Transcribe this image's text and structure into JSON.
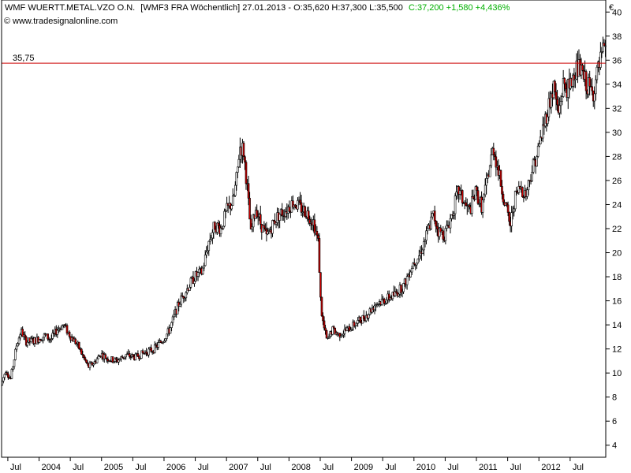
{
  "header": {
    "instrument": "WMF WUERTT.METAL.VZO O.N.",
    "details": "[WMF3 FRA  Wöchentlich] 27.01.2013 - O:35,620 H:37,300 L:35,500",
    "close_change": "C:37,200 +1,580 +4,436%",
    "source": "www.tradesignalonline.com",
    "currency": "€"
  },
  "colors": {
    "up": "#ffffff",
    "down": "#cc0000",
    "wick": "#000000",
    "close_positive": "#00b000",
    "level_line": "#cc0000"
  },
  "chart_data": {
    "type": "candlestick",
    "interval": "weekly",
    "ylim": [
      3,
      41
    ],
    "y_ticks": [
      4,
      6,
      8,
      10,
      12,
      14,
      16,
      18,
      20,
      22,
      24,
      26,
      28,
      30,
      32,
      34,
      36,
      38,
      40
    ],
    "x_range": [
      2003.4,
      2013.07
    ],
    "x_ticks": [
      {
        "label": "Jul",
        "x": 2003.5
      },
      {
        "label": "2004",
        "x": 2004.0
      },
      {
        "label": "Jul",
        "x": 2004.5
      },
      {
        "label": "2005",
        "x": 2005.0
      },
      {
        "label": "Jul",
        "x": 2005.5
      },
      {
        "label": "2006",
        "x": 2006.0
      },
      {
        "label": "Jul",
        "x": 2006.5
      },
      {
        "label": "2007",
        "x": 2007.0
      },
      {
        "label": "Jul",
        "x": 2007.5
      },
      {
        "label": "2008",
        "x": 2008.0
      },
      {
        "label": "Jul",
        "x": 2008.5
      },
      {
        "label": "2009",
        "x": 2009.0
      },
      {
        "label": "Jul",
        "x": 2009.5
      },
      {
        "label": "2010",
        "x": 2010.0
      },
      {
        "label": "Jul",
        "x": 2010.5
      },
      {
        "label": "2011",
        "x": 2011.0
      },
      {
        "label": "Jul",
        "x": 2011.5
      },
      {
        "label": "2012",
        "x": 2012.0
      },
      {
        "label": "Jul",
        "x": 2012.5
      }
    ],
    "horizontal_line": {
      "value": 35.75,
      "label": "35,75"
    },
    "price_path": [
      [
        2003.4,
        9.0
      ],
      [
        2003.48,
        10.3
      ],
      [
        2003.55,
        9.4
      ],
      [
        2003.65,
        12.3
      ],
      [
        2003.72,
        13.5
      ],
      [
        2003.8,
        12.6
      ],
      [
        2003.95,
        12.7
      ],
      [
        2004.1,
        13.1
      ],
      [
        2004.2,
        12.8
      ],
      [
        2004.3,
        13.6
      ],
      [
        2004.4,
        14.0
      ],
      [
        2004.52,
        13.0
      ],
      [
        2004.62,
        12.4
      ],
      [
        2004.72,
        11.3
      ],
      [
        2004.8,
        10.5
      ],
      [
        2004.9,
        10.9
      ],
      [
        2005.0,
        11.6
      ],
      [
        2005.1,
        11.2
      ],
      [
        2005.25,
        11.0
      ],
      [
        2005.4,
        11.5
      ],
      [
        2005.55,
        11.3
      ],
      [
        2005.7,
        11.7
      ],
      [
        2005.85,
        12.0
      ],
      [
        2006.0,
        12.8
      ],
      [
        2006.1,
        13.6
      ],
      [
        2006.2,
        15.2
      ],
      [
        2006.28,
        16.1
      ],
      [
        2006.38,
        17.0
      ],
      [
        2006.5,
        18.0
      ],
      [
        2006.62,
        18.4
      ],
      [
        2006.72,
        20.8
      ],
      [
        2006.82,
        22.3
      ],
      [
        2006.92,
        22.0
      ],
      [
        2007.02,
        23.6
      ],
      [
        2007.12,
        24.3
      ],
      [
        2007.18,
        26.5
      ],
      [
        2007.22,
        28.8
      ],
      [
        2007.28,
        28.6
      ],
      [
        2007.34,
        25.5
      ],
      [
        2007.4,
        21.5
      ],
      [
        2007.48,
        23.8
      ],
      [
        2007.55,
        22.5
      ],
      [
        2007.65,
        21.3
      ],
      [
        2007.75,
        22.4
      ],
      [
        2007.85,
        23.2
      ],
      [
        2007.95,
        23.5
      ],
      [
        2008.08,
        24.2
      ],
      [
        2008.18,
        23.8
      ],
      [
        2008.3,
        23.3
      ],
      [
        2008.4,
        22.6
      ],
      [
        2008.48,
        20.8
      ],
      [
        2008.52,
        15.5
      ],
      [
        2008.56,
        14.0
      ],
      [
        2008.62,
        12.6
      ],
      [
        2008.7,
        13.6
      ],
      [
        2008.8,
        13.2
      ],
      [
        2008.95,
        13.6
      ],
      [
        2009.1,
        14.2
      ],
      [
        2009.25,
        14.8
      ],
      [
        2009.4,
        15.8
      ],
      [
        2009.55,
        16.1
      ],
      [
        2009.7,
        16.5
      ],
      [
        2009.85,
        17.3
      ],
      [
        2010.0,
        19.2
      ],
      [
        2010.1,
        19.8
      ],
      [
        2010.2,
        21.3
      ],
      [
        2010.32,
        23.2
      ],
      [
        2010.4,
        21.8
      ],
      [
        2010.5,
        21.5
      ],
      [
        2010.62,
        23.2
      ],
      [
        2010.72,
        25.2
      ],
      [
        2010.82,
        24.0
      ],
      [
        2010.9,
        23.5
      ],
      [
        2011.0,
        25.0
      ],
      [
        2011.1,
        23.8
      ],
      [
        2011.2,
        26.5
      ],
      [
        2011.28,
        28.8
      ],
      [
        2011.35,
        27.0
      ],
      [
        2011.45,
        24.5
      ],
      [
        2011.55,
        22.2
      ],
      [
        2011.62,
        24.5
      ],
      [
        2011.72,
        25.5
      ],
      [
        2011.8,
        24.8
      ],
      [
        2011.9,
        27.0
      ],
      [
        2012.0,
        28.5
      ],
      [
        2012.08,
        30.5
      ],
      [
        2012.18,
        32.5
      ],
      [
        2012.25,
        33.8
      ],
      [
        2012.32,
        31.5
      ],
      [
        2012.4,
        34.0
      ],
      [
        2012.5,
        33.5
      ],
      [
        2012.58,
        35.3
      ],
      [
        2012.66,
        35.2
      ],
      [
        2012.72,
        34.5
      ],
      [
        2012.8,
        33.8
      ],
      [
        2012.87,
        33.2
      ],
      [
        2012.95,
        35.0
      ],
      [
        2013.07,
        37.2
      ]
    ]
  }
}
